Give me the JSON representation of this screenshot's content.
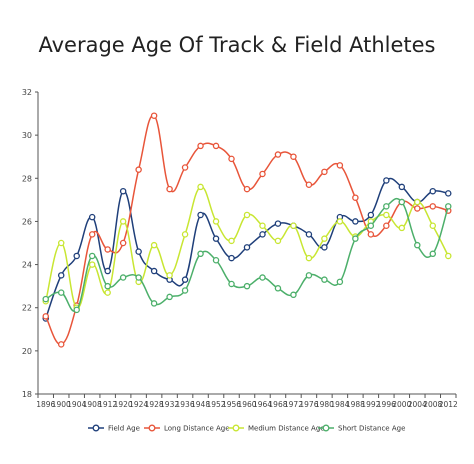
{
  "chart_data": {
    "type": "line",
    "title": "Average Age Of Track & Field Athletes",
    "xlabel": "",
    "ylabel": "",
    "ylim": [
      18,
      32
    ],
    "yticks": [
      18,
      20,
      22,
      24,
      26,
      28,
      30,
      32
    ],
    "grid": false,
    "legend_position": "bottom",
    "x": [
      1896,
      1900,
      1904,
      1908,
      1912,
      1920,
      1924,
      1928,
      1932,
      1936,
      1948,
      1952,
      1956,
      1960,
      1964,
      1968,
      1972,
      1976,
      1980,
      1984,
      1988,
      1992,
      1996,
      2000,
      2004,
      2008,
      2012
    ],
    "series": [
      {
        "name": "Field Age",
        "color": "#1f3f7a",
        "values": [
          21.5,
          23.5,
          24.4,
          26.2,
          23.7,
          27.4,
          24.6,
          23.7,
          23.3,
          23.3,
          26.3,
          25.2,
          24.3,
          24.8,
          25.4,
          25.9,
          25.8,
          25.4,
          24.8,
          26.2,
          26.0,
          26.3,
          27.9,
          27.6,
          26.9,
          27.4,
          27.3
        ]
      },
      {
        "name": "Long Distance Age",
        "color": "#e8553a",
        "values": [
          21.6,
          20.3,
          22.1,
          25.4,
          24.7,
          25.0,
          28.4,
          30.9,
          27.5,
          28.5,
          29.5,
          29.5,
          28.9,
          27.5,
          28.2,
          29.1,
          29.0,
          27.7,
          28.3,
          28.6,
          27.1,
          25.4,
          25.8,
          26.9,
          26.6,
          26.7,
          26.5
        ]
      },
      {
        "name": "Medium Distance Age",
        "color": "#c8e632",
        "values": [
          22.3,
          25.0,
          22.0,
          24.0,
          22.7,
          26.0,
          23.2,
          24.9,
          23.5,
          25.4,
          27.6,
          26.0,
          25.1,
          26.3,
          25.8,
          25.1,
          25.8,
          24.3,
          25.2,
          26.0,
          25.3,
          26.0,
          26.3,
          25.7,
          26.9,
          25.8,
          24.4
        ]
      },
      {
        "name": "Short Distance Age",
        "color": "#4caf6a",
        "values": [
          22.4,
          22.7,
          21.9,
          24.4,
          23.0,
          23.4,
          23.4,
          22.2,
          22.5,
          22.8,
          24.5,
          24.2,
          23.1,
          23.0,
          23.4,
          22.9,
          22.6,
          23.5,
          23.3,
          23.2,
          25.2,
          25.8,
          26.7,
          26.9,
          24.9,
          24.5,
          26.7
        ]
      }
    ]
  }
}
